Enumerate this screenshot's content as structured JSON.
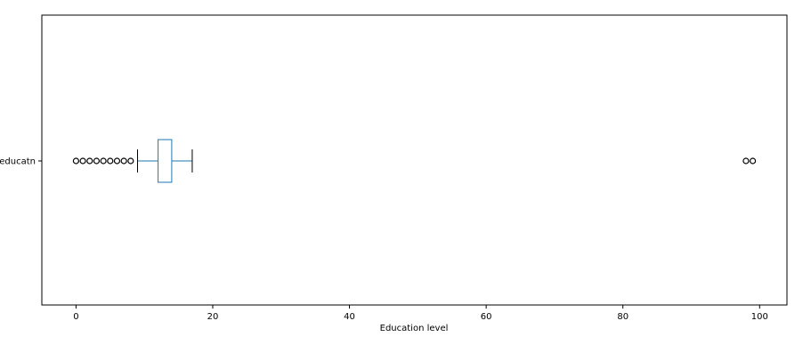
{
  "chart_data": {
    "type": "boxplot",
    "orientation": "horizontal",
    "title": "",
    "xlabel": "Education level",
    "ylabel": "",
    "xlim": [
      -5,
      104
    ],
    "xticks": [
      0,
      20,
      40,
      60,
      80,
      100
    ],
    "grid": false,
    "legend": "none",
    "series": [
      {
        "category": "educatn",
        "whisker_low": 9,
        "q1": 12,
        "median": 12,
        "q3": 14,
        "whisker_high": 17,
        "outliers": [
          0,
          1,
          2,
          3,
          4,
          5,
          6,
          7,
          8,
          98,
          99
        ]
      }
    ],
    "colors": {
      "box": "#1f77b4",
      "median": "#2ca02c",
      "whisker": "#1f77b4",
      "cap": "#000000",
      "outlier": "#000000"
    }
  }
}
